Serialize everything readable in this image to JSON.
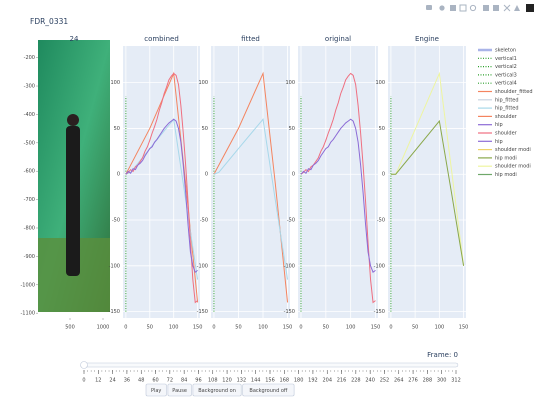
{
  "title": "FDR_0331",
  "chart_data": [
    {
      "type": "image",
      "title": "24",
      "xlim": [
        15,
        1106
      ],
      "ylim": [
        -1117,
        -159
      ],
      "xticks": [
        500,
        1000
      ],
      "yticks": [
        -200,
        -300,
        -400,
        -500,
        -600,
        -700,
        -800,
        -900,
        -1000,
        -1100
      ]
    },
    {
      "type": "line",
      "title": "combined",
      "xlim": [
        -6,
        155
      ],
      "ylim": [
        -157,
        140
      ],
      "xticks": [
        0,
        50,
        100,
        150
      ],
      "yticks": [
        -150,
        -100,
        -50,
        0,
        50,
        100
      ],
      "grid": true,
      "series": [
        {
          "color": "#2ca02c",
          "dash": "dot",
          "x": [
            0,
            0
          ],
          "values": [
            -150,
            85
          ]
        },
        {
          "color": "#f4845f",
          "x": [
            0,
            50,
            100,
            125,
            150
          ],
          "values": [
            0,
            50,
            110,
            -10,
            -140
          ]
        },
        {
          "color": "#a8d8ea",
          "x": [
            0,
            10,
            50,
            100,
            125,
            150
          ],
          "values": [
            0,
            2,
            28,
            60,
            -28,
            -115
          ]
        },
        {
          "color": "#ef6f80",
          "x": [
            0,
            5,
            10,
            15,
            20,
            25,
            30,
            35,
            40,
            45,
            50,
            55,
            60,
            65,
            70,
            75,
            80,
            85,
            90,
            95,
            100,
            105,
            110,
            115,
            120,
            125,
            130,
            135,
            140,
            145,
            150
          ],
          "values": [
            0,
            2,
            5,
            3,
            8,
            10,
            14,
            18,
            25,
            30,
            37,
            45,
            52,
            60,
            70,
            78,
            88,
            95,
            103,
            107,
            110,
            108,
            98,
            75,
            45,
            10,
            -30,
            -75,
            -115,
            -140,
            -138
          ]
        },
        {
          "color": "#8c6bd6",
          "x": [
            0,
            5,
            10,
            15,
            20,
            25,
            30,
            35,
            40,
            45,
            50,
            55,
            60,
            65,
            70,
            75,
            80,
            85,
            90,
            95,
            100,
            105,
            110,
            115,
            120,
            125,
            130,
            135,
            140,
            145,
            150
          ],
          "values": [
            0,
            3,
            1,
            6,
            5,
            10,
            12,
            15,
            20,
            24,
            28,
            30,
            35,
            38,
            42,
            46,
            50,
            53,
            56,
            58,
            60,
            58,
            50,
            35,
            10,
            -20,
            -55,
            -85,
            -100,
            -107,
            -105
          ]
        }
      ]
    },
    {
      "type": "line",
      "title": "fitted",
      "xlim": [
        -6,
        155
      ],
      "ylim": [
        -157,
        140
      ],
      "xticks": [
        0,
        50,
        100,
        150
      ],
      "yticks": [
        -150,
        -100,
        -50,
        0,
        50,
        100
      ],
      "grid": true,
      "series": [
        {
          "color": "#2ca02c",
          "dash": "dot",
          "x": [
            0,
            0
          ],
          "values": [
            -150,
            85
          ]
        },
        {
          "color": "#f4845f",
          "x": [
            0,
            50,
            100,
            125,
            150
          ],
          "values": [
            0,
            50,
            110,
            -10,
            -140
          ]
        },
        {
          "color": "#a8d8ea",
          "x": [
            0,
            10,
            50,
            100,
            125,
            150
          ],
          "values": [
            0,
            2,
            28,
            60,
            -28,
            -115
          ]
        }
      ]
    },
    {
      "type": "line",
      "title": "original",
      "xlim": [
        -6,
        155
      ],
      "ylim": [
        -157,
        140
      ],
      "xticks": [
        0,
        50,
        100,
        150
      ],
      "yticks": [
        -150,
        -100,
        -50,
        0,
        50,
        100
      ],
      "grid": true,
      "series": [
        {
          "color": "#2ca02c",
          "dash": "dot",
          "x": [
            0,
            0
          ],
          "values": [
            -150,
            85
          ]
        },
        {
          "color": "#ef6f80",
          "x": [
            0,
            5,
            10,
            15,
            20,
            25,
            30,
            35,
            40,
            45,
            50,
            55,
            60,
            65,
            70,
            75,
            80,
            85,
            90,
            95,
            100,
            105,
            110,
            115,
            120,
            125,
            130,
            135,
            140,
            145,
            150
          ],
          "values": [
            0,
            2,
            5,
            3,
            8,
            10,
            14,
            18,
            25,
            30,
            37,
            45,
            52,
            60,
            70,
            78,
            88,
            95,
            103,
            107,
            110,
            108,
            98,
            75,
            45,
            10,
            -30,
            -75,
            -115,
            -140,
            -138
          ]
        },
        {
          "color": "#8c6bd6",
          "x": [
            0,
            5,
            10,
            15,
            20,
            25,
            30,
            35,
            40,
            45,
            50,
            55,
            60,
            65,
            70,
            75,
            80,
            85,
            90,
            95,
            100,
            105,
            110,
            115,
            120,
            125,
            130,
            135,
            140,
            145,
            150
          ],
          "values": [
            0,
            3,
            1,
            6,
            5,
            10,
            12,
            15,
            20,
            24,
            28,
            30,
            35,
            38,
            42,
            46,
            50,
            53,
            56,
            58,
            60,
            58,
            50,
            35,
            10,
            -20,
            -55,
            -85,
            -100,
            -107,
            -105
          ]
        }
      ]
    },
    {
      "type": "line",
      "title": "Engine",
      "xlim": [
        -6,
        155
      ],
      "ylim": [
        -157,
        140
      ],
      "xticks": [
        0,
        50,
        100,
        150
      ],
      "yticks": [
        -150,
        -100,
        -50,
        0,
        50,
        100
      ],
      "grid": true,
      "series": [
        {
          "color": "#2ca02c",
          "dash": "dot",
          "x": [
            0,
            0
          ],
          "values": [
            -150,
            85
          ]
        },
        {
          "color": "#eef5a0",
          "x": [
            0,
            10,
            100,
            125,
            150
          ],
          "values": [
            0,
            0,
            110,
            5,
            -100
          ]
        },
        {
          "color": "#8aa84a",
          "x": [
            0,
            10,
            100,
            125,
            150
          ],
          "values": [
            0,
            0,
            58,
            -20,
            -100
          ]
        }
      ]
    }
  ],
  "legend": [
    {
      "name": "skeleton",
      "color": "#a9b4e8"
    },
    {
      "name": "vertical1",
      "color": "#2ca02c",
      "dash": "dot"
    },
    {
      "name": "vertical2",
      "color": "#2ca02c",
      "dash": "dot"
    },
    {
      "name": "vertical3",
      "color": "#2ca02c",
      "dash": "dot"
    },
    {
      "name": "vertical4",
      "color": "#2ca02c",
      "dash": "dot"
    },
    {
      "name": "shoulder_fitted",
      "color": "#f4845f"
    },
    {
      "name": "hip_fitted",
      "color": "#c9d3df"
    },
    {
      "name": "hip_fitted",
      "color": "#a8d8ea"
    },
    {
      "name": "shoulder",
      "color": "#f4845f"
    },
    {
      "name": "hip",
      "color": "#8c6bd6"
    },
    {
      "name": "shoulder",
      "color": "#ef6f80"
    },
    {
      "name": "hip",
      "color": "#8c6bd6"
    },
    {
      "name": "shoulder modi",
      "color": "#eed36a"
    },
    {
      "name": "hip modi",
      "color": "#8aa84a"
    },
    {
      "name": "shoulder modi",
      "color": "#eef5a0"
    },
    {
      "name": "hip modi",
      "color": "#6fa86a"
    }
  ],
  "slider": {
    "label": "Frame: 0",
    "ticks": [
      0,
      12,
      24,
      36,
      48,
      60,
      72,
      84,
      96,
      108,
      120,
      132,
      144,
      156,
      168,
      180,
      192,
      204,
      216,
      228,
      240,
      252,
      264,
      276,
      288,
      300,
      312
    ]
  },
  "buttons": [
    "Play",
    "Pause",
    "Background on",
    "Background off"
  ]
}
